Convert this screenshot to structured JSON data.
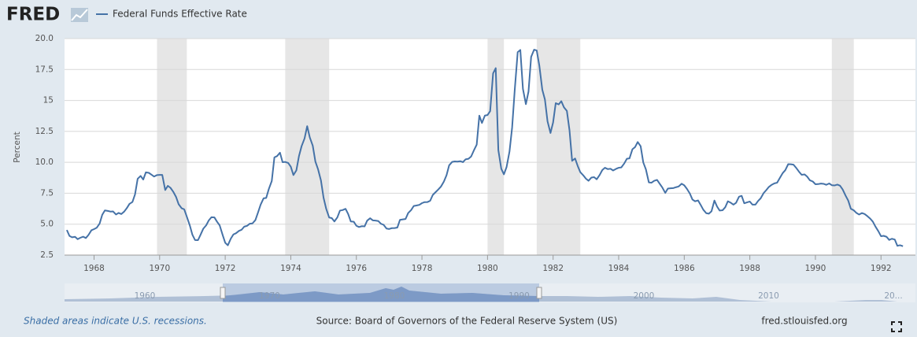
{
  "logo": "FRED",
  "chart_data": {
    "type": "line",
    "y_label": "Percent",
    "x": [
      1967.17,
      1967.25,
      1967.33,
      1967.42,
      1967.5,
      1967.58,
      1967.67,
      1967.75,
      1967.83,
      1967.92,
      1968,
      1968.08,
      1968.17,
      1968.25,
      1968.33,
      1968.42,
      1968.5,
      1968.58,
      1968.67,
      1968.75,
      1968.83,
      1968.92,
      1969,
      1969.08,
      1969.17,
      1969.25,
      1969.33,
      1969.42,
      1969.5,
      1969.58,
      1969.67,
      1969.75,
      1969.83,
      1969.92,
      1970,
      1970.08,
      1970.17,
      1970.25,
      1970.33,
      1970.42,
      1970.5,
      1970.58,
      1970.67,
      1970.75,
      1970.83,
      1970.92,
      1971,
      1971.08,
      1971.17,
      1971.25,
      1971.33,
      1971.42,
      1971.5,
      1971.58,
      1971.67,
      1971.75,
      1971.83,
      1971.92,
      1972,
      1972.08,
      1972.17,
      1972.25,
      1972.33,
      1972.42,
      1972.5,
      1972.58,
      1972.67,
      1972.75,
      1972.83,
      1972.92,
      1973,
      1973.08,
      1973.17,
      1973.25,
      1973.33,
      1973.42,
      1973.5,
      1973.58,
      1973.67,
      1973.75,
      1973.83,
      1973.92,
      1974,
      1974.08,
      1974.17,
      1974.25,
      1974.33,
      1974.42,
      1974.5,
      1974.58,
      1974.67,
      1974.75,
      1974.83,
      1974.92,
      1975,
      1975.08,
      1975.17,
      1975.25,
      1975.33,
      1975.42,
      1975.5,
      1975.58,
      1975.67,
      1975.75,
      1975.83,
      1975.92,
      1976,
      1976.08,
      1976.17,
      1976.25,
      1976.33,
      1976.42,
      1976.5,
      1976.58,
      1976.67,
      1976.75,
      1976.83,
      1976.92,
      1977,
      1977.08,
      1977.17,
      1977.25,
      1977.33,
      1977.42,
      1977.5,
      1977.58,
      1977.67,
      1977.75,
      1977.83,
      1977.92,
      1978,
      1978.08,
      1978.17,
      1978.25,
      1978.33,
      1978.42,
      1978.5,
      1978.58,
      1978.67,
      1978.75,
      1978.83,
      1978.92,
      1979,
      1979.08,
      1979.17,
      1979.25,
      1979.33,
      1979.42,
      1979.5,
      1979.58,
      1979.67,
      1979.75,
      1979.83,
      1979.92,
      1980,
      1980.08,
      1980.17,
      1980.25,
      1980.33,
      1980.42,
      1980.5,
      1980.58,
      1980.67,
      1980.75,
      1980.83,
      1980.92,
      1981,
      1981.08,
      1981.17,
      1981.25,
      1981.33,
      1981.42,
      1981.5,
      1981.58,
      1981.67,
      1981.75,
      1981.83,
      1981.92,
      1982,
      1982.08,
      1982.17,
      1982.25,
      1982.33,
      1982.42,
      1982.5,
      1982.58,
      1982.67,
      1982.75,
      1982.83,
      1982.92,
      1983,
      1983.08,
      1983.17,
      1983.25,
      1983.33,
      1983.42,
      1983.5,
      1983.58,
      1983.67,
      1983.75,
      1983.83,
      1983.92,
      1984,
      1984.08,
      1984.17,
      1984.25,
      1984.33,
      1984.42,
      1984.5,
      1984.58,
      1984.67,
      1984.75,
      1984.83,
      1984.92,
      1985,
      1985.08,
      1985.17,
      1985.25,
      1985.33,
      1985.42,
      1985.5,
      1985.58,
      1985.67,
      1985.75,
      1985.83,
      1985.92,
      1986,
      1986.08,
      1986.17,
      1986.25,
      1986.33,
      1986.42,
      1986.5,
      1986.58,
      1986.67,
      1986.75,
      1986.83,
      1986.92,
      1987,
      1987.08,
      1987.17,
      1987.25,
      1987.33,
      1987.42,
      1987.5,
      1987.58,
      1987.67,
      1987.75,
      1987.83,
      1987.92,
      1988,
      1988.08,
      1988.17,
      1988.25,
      1988.33,
      1988.42,
      1988.5,
      1988.58,
      1988.67,
      1988.75,
      1988.83,
      1988.92,
      1989,
      1989.08,
      1989.17,
      1989.25,
      1989.33,
      1989.42,
      1989.5,
      1989.58,
      1989.67,
      1989.75,
      1989.83,
      1989.92,
      1990,
      1990.08,
      1990.17,
      1990.25,
      1990.33,
      1990.42,
      1990.5,
      1990.58,
      1990.67,
      1990.75,
      1990.83,
      1990.92,
      1991,
      1991.08,
      1991.17,
      1991.25,
      1991.33,
      1991.42,
      1991.5,
      1991.58,
      1991.67,
      1991.75,
      1991.83,
      1991.92,
      1992,
      1992.08,
      1992.17,
      1992.25,
      1992.33,
      1992.42,
      1992.5,
      1992.58,
      1992.67
    ],
    "series": [
      {
        "name": "Federal Funds Effective Rate",
        "color": "#4572a7",
        "values": [
          4.53,
          4.05,
          3.94,
          3.98,
          3.79,
          3.9,
          3.99,
          3.88,
          4.13,
          4.51,
          4.6,
          4.71,
          5.05,
          5.76,
          6.11,
          6.07,
          6.02,
          6.03,
          5.78,
          5.91,
          5.82,
          6.02,
          6.3,
          6.64,
          6.79,
          7.41,
          8.67,
          8.9,
          8.61,
          9.19,
          9.15,
          9,
          8.85,
          8.97,
          8.98,
          8.98,
          7.76,
          8.1,
          7.94,
          7.6,
          7.21,
          6.61,
          6.29,
          6.2,
          5.6,
          4.9,
          4.14,
          3.72,
          3.71,
          4.16,
          4.63,
          4.91,
          5.31,
          5.56,
          5.55,
          5.2,
          4.91,
          4.14,
          3.5,
          3.29,
          3.83,
          4.17,
          4.27,
          4.46,
          4.55,
          4.8,
          4.87,
          5.04,
          5.06,
          5.33,
          5.94,
          6.58,
          7.09,
          7.12,
          7.84,
          8.49,
          10.4,
          10.5,
          10.78,
          10.01,
          10.03,
          9.95,
          9.65,
          8.97,
          9.35,
          10.51,
          11.31,
          11.93,
          12.92,
          12.01,
          11.34,
          10.06,
          9.45,
          8.53,
          7.13,
          6.24,
          5.54,
          5.49,
          5.22,
          5.55,
          6.1,
          6.14,
          6.24,
          5.82,
          5.22,
          5.2,
          4.87,
          4.77,
          4.84,
          4.82,
          5.29,
          5.48,
          5.31,
          5.29,
          5.25,
          5.03,
          4.95,
          4.65,
          4.61,
          4.68,
          4.69,
          4.73,
          5.35,
          5.39,
          5.42,
          5.9,
          6.14,
          6.47,
          6.51,
          6.56,
          6.7,
          6.78,
          6.79,
          6.89,
          7.36,
          7.6,
          7.81,
          8.04,
          8.45,
          8.96,
          9.76,
          10.03,
          10.07,
          10.06,
          10.09,
          10.01,
          10.24,
          10.29,
          10.47,
          10.94,
          11.43,
          13.77,
          13.18,
          13.78,
          13.82,
          14.13,
          17.19,
          17.61,
          10.98,
          9.47,
          9.03,
          9.61,
          10.87,
          12.81,
          15.85,
          18.9,
          19.08,
          15.93,
          14.7,
          15.72,
          18.52,
          19.1,
          19.04,
          17.82,
          15.87,
          15.08,
          13.31,
          12.37,
          13.22,
          14.78,
          14.68,
          14.94,
          14.45,
          14.15,
          12.59,
          10.12,
          10.31,
          9.71,
          9.2,
          8.95,
          8.68,
          8.51,
          8.77,
          8.8,
          8.63,
          8.98,
          9.37,
          9.56,
          9.45,
          9.48,
          9.34,
          9.47,
          9.56,
          9.59,
          9.91,
          10.29,
          10.32,
          11.06,
          11.23,
          11.64,
          11.3,
          9.99,
          9.43,
          8.38,
          8.35,
          8.5,
          8.58,
          8.27,
          7.97,
          7.53,
          7.88,
          7.9,
          7.92,
          7.99,
          8.05,
          8.27,
          8.14,
          7.86,
          7.48,
          6.99,
          6.85,
          6.92,
          6.56,
          6.17,
          5.89,
          5.85,
          6.04,
          6.91,
          6.43,
          6.1,
          6.13,
          6.37,
          6.85,
          6.73,
          6.58,
          6.73,
          7.22,
          7.29,
          6.69,
          6.77,
          6.83,
          6.58,
          6.58,
          6.87,
          7.09,
          7.51,
          7.75,
          8.01,
          8.19,
          8.3,
          8.35,
          8.76,
          9.12,
          9.36,
          9.85,
          9.84,
          9.81,
          9.53,
          9.24,
          8.99,
          9.02,
          8.84,
          8.55,
          8.45,
          8.23,
          8.24,
          8.28,
          8.26,
          8.18,
          8.29,
          8.15,
          8.13,
          8.2,
          8.11,
          7.81,
          7.31,
          6.91,
          6.25,
          6.12,
          5.91,
          5.78,
          5.9,
          5.82,
          5.66,
          5.45,
          5.21,
          4.81,
          4.43,
          4.03,
          4.06,
          3.98,
          3.73,
          3.82,
          3.76,
          3.25,
          3.3,
          3.22
        ]
      }
    ],
    "recessions": [
      [
        1969.92,
        1970.83
      ],
      [
        1973.83,
        1975.17
      ],
      [
        1980,
        1980.5
      ],
      [
        1981.5,
        1982.83
      ],
      [
        1990.5,
        1991.17
      ]
    ],
    "recession_color": "#e6e6e6",
    "xlim": [
      1967.1,
      1993.05
    ],
    "xticks": [
      1968,
      1970,
      1972,
      1974,
      1976,
      1978,
      1980,
      1982,
      1984,
      1986,
      1988,
      1990,
      1992
    ],
    "ylim": [
      2.5,
      20
    ],
    "yticks": [
      2.5,
      {
        "value": 5,
        "label": "5.0"
      },
      7.5,
      {
        "value": 10,
        "label": "10.0"
      },
      12.5,
      15,
      17.5,
      {
        "value": 20,
        "label": "20.0"
      }
    ],
    "grid": true
  },
  "navigator_labels": [
    "1960",
    "1970",
    "1980",
    "1990",
    "2000",
    "2010",
    "20..."
  ],
  "footer": {
    "note": "Shaded areas indicate U.S. recessions.",
    "source": "Source: Board of Governors of the Federal Reserve System (US)",
    "site": "fred.stlouisfed.org"
  }
}
